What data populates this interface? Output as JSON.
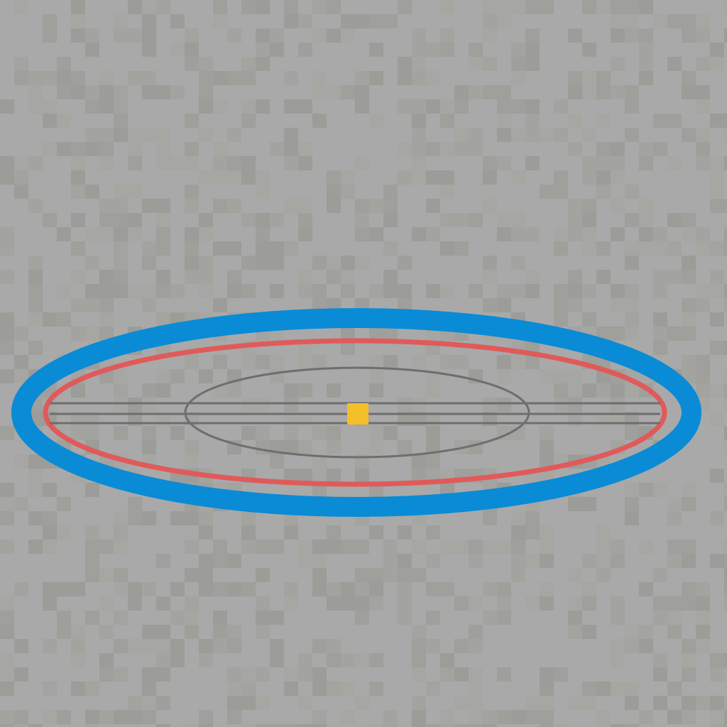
{
  "scene": {
    "background_color": "#a9a9a9",
    "noise_colors": [
      "#a3a39f",
      "#9f9f9b",
      "#a6a6a3",
      "#9c9c98"
    ],
    "outer_ring": {
      "color": "#0a8bd6",
      "role": "outer boundary"
    },
    "inner_ring": {
      "color": "#e05a5a",
      "role": "inner boundary"
    },
    "guide_ellipse": {
      "color": "#6e6e6e",
      "role": "core orbit"
    },
    "guide_lines": {
      "color": "#6e6e6e",
      "count": 3
    },
    "center_marker": {
      "color": "#f5bf2a",
      "icon": "square-marker-icon"
    }
  }
}
